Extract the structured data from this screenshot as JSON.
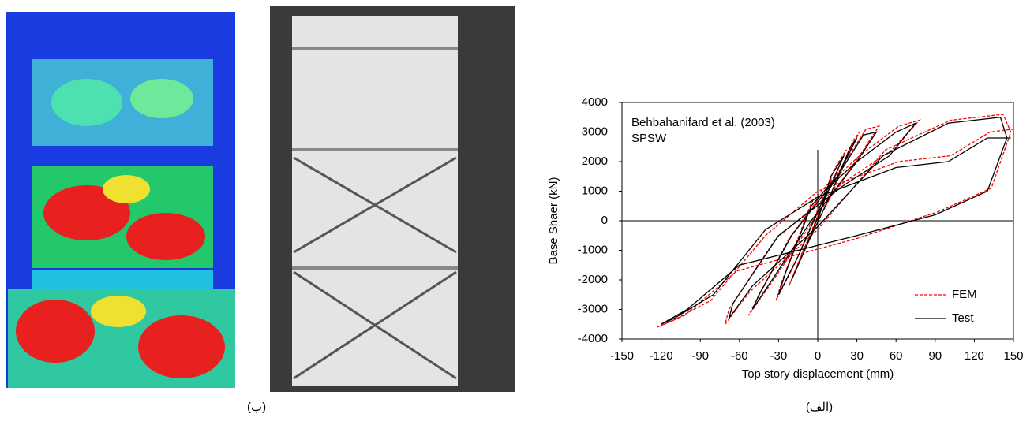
{
  "chart_data": {
    "type": "line",
    "xlabel": "Top story displacement (mm)",
    "ylabel": "Base Shaer (kN)",
    "annotations": [
      "Behbahanifard et al. (2003)",
      "SPSW"
    ],
    "xlim": [
      -150,
      150
    ],
    "xticks": [
      -150,
      -120,
      -90,
      -60,
      -30,
      0,
      30,
      60,
      90,
      120,
      150
    ],
    "ylim": [
      -4000,
      4000
    ],
    "yticks": [
      -4000,
      -3000,
      -2000,
      -1000,
      0,
      1000,
      2000,
      3000,
      4000
    ],
    "legend": "lower right",
    "series": [
      {
        "name": "FEM",
        "color": "#ff0000",
        "dash": true,
        "x": [
          0,
          12,
          22,
          10,
          -12,
          -22,
          -10,
          12,
          27,
          32,
          17,
          -5,
          -27,
          -32,
          -17,
          5,
          37,
          47,
          32,
          10,
          -22,
          -47,
          -53,
          -37,
          -5,
          32,
          62,
          78,
          57,
          20,
          -32,
          -68,
          -71,
          -52,
          0,
          52,
          102,
          142,
          148,
          133,
          92,
          30,
          -62,
          -102,
          -123,
          -112,
          -82,
          -40,
          0,
          62,
          102,
          132,
          150
        ],
        "values": [
          0,
          1700,
          2400,
          1200,
          -1100,
          -2200,
          -900,
          1000,
          2700,
          3000,
          1700,
          600,
          -2000,
          -2700,
          -1400,
          900,
          3100,
          3200,
          2200,
          1300,
          -600,
          -2700,
          -3200,
          -2200,
          -100,
          2200,
          3200,
          3400,
          2400,
          1300,
          -600,
          -3000,
          -3500,
          -2400,
          -300,
          2400,
          3400,
          3600,
          3000,
          1100,
          300,
          -600,
          -1700,
          -3200,
          -3600,
          -3400,
          -2700,
          -500,
          1000,
          2000,
          2200,
          3000,
          3100
        ]
      },
      {
        "name": "Test",
        "color": "#000000",
        "dash": false,
        "x": [
          0,
          10,
          20,
          8,
          -10,
          -20,
          -8,
          10,
          25,
          30,
          15,
          -5,
          -25,
          -30,
          -15,
          5,
          35,
          45,
          30,
          10,
          -20,
          -45,
          -50,
          -35,
          -5,
          30,
          60,
          75,
          55,
          20,
          -30,
          -65,
          -68,
          -50,
          0,
          50,
          100,
          140,
          145,
          130,
          90,
          30,
          -60,
          -100,
          -120,
          -110,
          -80,
          -40,
          0,
          60,
          100,
          130,
          148
        ],
        "values": [
          0,
          1500,
          2200,
          1000,
          -1000,
          -2000,
          -800,
          900,
          2500,
          2800,
          1500,
          500,
          -1800,
          -2500,
          -1200,
          800,
          2900,
          3000,
          2000,
          1200,
          -500,
          -2500,
          -3000,
          -2000,
          0,
          2000,
          3000,
          3300,
          2200,
          1200,
          -500,
          -2800,
          -3300,
          -2200,
          -200,
          2200,
          3300,
          3500,
          2800,
          1000,
          200,
          -500,
          -1500,
          -3000,
          -3500,
          -3300,
          -2500,
          -300,
          800,
          1800,
          2000,
          2800,
          2800
        ]
      }
    ]
  },
  "captions": [
    "(ب)",
    "(الف)"
  ]
}
